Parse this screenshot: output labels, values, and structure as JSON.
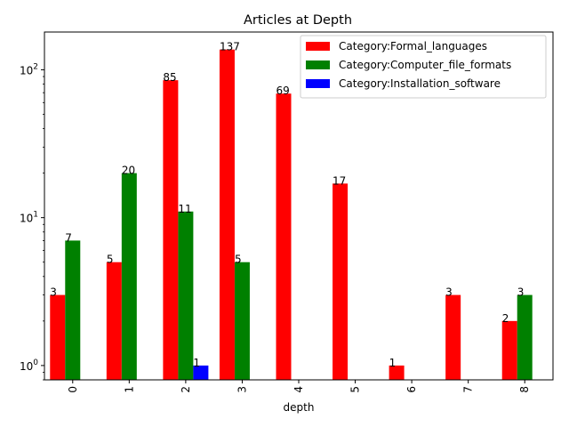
{
  "chart_data": {
    "type": "bar",
    "title": "Articles at Depth",
    "xlabel": "depth",
    "ylabel": "",
    "yscale": "log",
    "ylim": [
      0.8,
      180
    ],
    "grid": false,
    "legend_position": "top-right",
    "categories": [
      "0",
      "1",
      "2",
      "3",
      "4",
      "5",
      "6",
      "7",
      "8"
    ],
    "y_ticks": [
      {
        "value": 1,
        "base": "10",
        "exp": "0"
      },
      {
        "value": 10,
        "base": "10",
        "exp": "1"
      },
      {
        "value": 100,
        "base": "10",
        "exp": "2"
      }
    ],
    "series": [
      {
        "name": "Category:Formal_languages",
        "color": "#ff0000",
        "values": [
          3,
          5,
          85,
          137,
          69,
          17,
          1,
          3,
          2
        ]
      },
      {
        "name": "Category:Computer_file_formats",
        "color": "#008000",
        "values": [
          7,
          20,
          11,
          5,
          null,
          null,
          null,
          null,
          3
        ]
      },
      {
        "name": "Category:Installation_software",
        "color": "#0000ff",
        "values": [
          null,
          null,
          1,
          null,
          null,
          null,
          null,
          null,
          null
        ]
      }
    ]
  }
}
